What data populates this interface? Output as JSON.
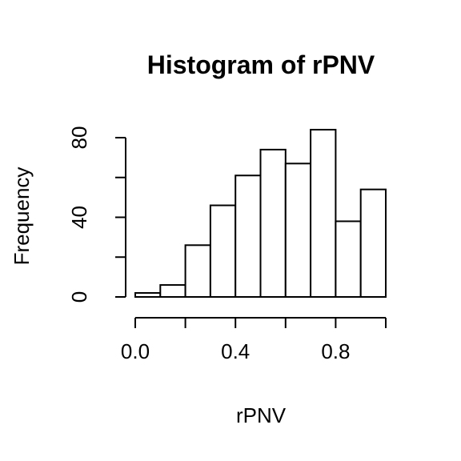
{
  "chart_data": {
    "type": "bar",
    "title": "Histogram of rPNV",
    "xlabel": "rPNV",
    "ylabel": "Frequency",
    "bins": [
      {
        "start": 0.0,
        "end": 0.1,
        "count": 2
      },
      {
        "start": 0.1,
        "end": 0.2,
        "count": 6
      },
      {
        "start": 0.2,
        "end": 0.3,
        "count": 26
      },
      {
        "start": 0.3,
        "end": 0.4,
        "count": 46
      },
      {
        "start": 0.4,
        "end": 0.5,
        "count": 61
      },
      {
        "start": 0.5,
        "end": 0.6,
        "count": 74
      },
      {
        "start": 0.6,
        "end": 0.7,
        "count": 67
      },
      {
        "start": 0.7,
        "end": 0.8,
        "count": 84
      },
      {
        "start": 0.8,
        "end": 0.9,
        "count": 38
      },
      {
        "start": 0.9,
        "end": 1.0,
        "count": 54
      }
    ],
    "xlim": [
      0,
      1
    ],
    "ylim": [
      0,
      80
    ],
    "x_ticks": [
      0.0,
      0.2,
      0.4,
      0.6,
      0.8,
      1.0
    ],
    "x_tick_labels": [
      "0.0",
      "",
      "0.4",
      "",
      "0.8",
      ""
    ],
    "y_ticks": [
      0,
      20,
      40,
      60,
      80
    ],
    "y_tick_labels": [
      "0",
      "",
      "40",
      "",
      "80"
    ],
    "grid": false
  }
}
